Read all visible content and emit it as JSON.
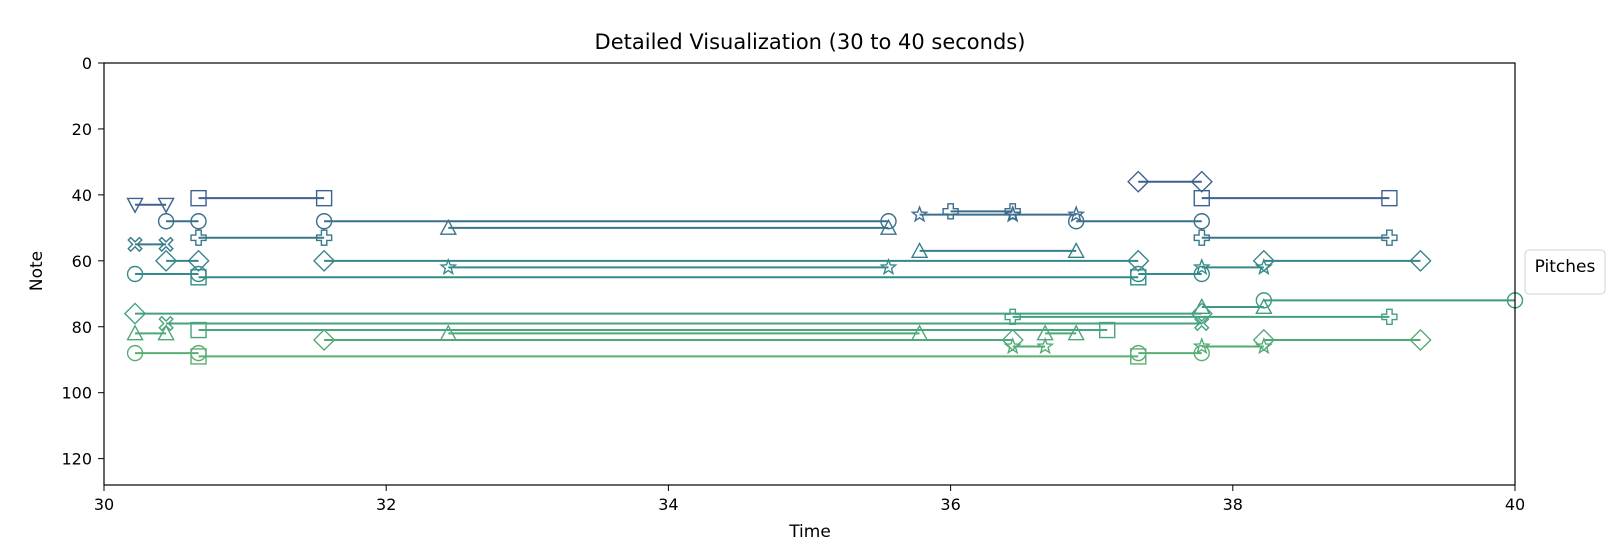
{
  "chart_data": {
    "type": "line",
    "title": "Detailed Visualization (30 to 40 seconds)",
    "xlabel": "Time",
    "ylabel": "Note",
    "xlim": [
      30,
      40
    ],
    "ylim": [
      128,
      0
    ],
    "y_inverted": true,
    "xticks": [
      30,
      32,
      34,
      36,
      38,
      40
    ],
    "yticks": [
      0,
      20,
      40,
      60,
      80,
      100,
      120
    ],
    "grid": false,
    "legend": {
      "title": "Pitches",
      "placement": "center-right outside",
      "entries": []
    },
    "colormap": "viridis (darker for low note numbers, green for high)",
    "series": [
      {
        "note": 36,
        "marker": "D",
        "color": "#3f5f8f",
        "segments": [
          [
            37.33,
            37.78
          ]
        ]
      },
      {
        "note": 41,
        "marker": "s",
        "color": "#3e6190",
        "segments": [
          [
            30.67,
            31.56
          ],
          [
            37.78,
            39.11
          ]
        ]
      },
      {
        "note": 43,
        "marker": "v",
        "color": "#3f638f",
        "segments": [
          [
            30.22,
            30.44
          ]
        ]
      },
      {
        "note": 45,
        "marker": "P",
        "color": "#3d6b8e",
        "segments": [
          [
            36.0,
            36.44
          ]
        ]
      },
      {
        "note": 46,
        "marker": "*",
        "color": "#3d6e8e",
        "segments": [
          [
            35.78,
            36.44
          ],
          [
            36.44,
            36.89
          ]
        ]
      },
      {
        "note": 48,
        "marker": "o",
        "color": "#3a6f8c",
        "segments": [
          [
            30.44,
            30.67
          ],
          [
            31.56,
            35.56
          ],
          [
            36.89,
            37.78
          ]
        ]
      },
      {
        "note": 50,
        "marker": "^",
        "color": "#3a738c",
        "segments": [
          [
            32.44,
            35.56
          ]
        ]
      },
      {
        "note": 53,
        "marker": "P",
        "color": "#39778b",
        "segments": [
          [
            30.67,
            31.56
          ],
          [
            37.78,
            39.11
          ]
        ]
      },
      {
        "note": 55,
        "marker": "X",
        "color": "#387a8a",
        "segments": [
          [
            30.22,
            30.44
          ]
        ]
      },
      {
        "note": 57,
        "marker": "^",
        "color": "#37808a",
        "segments": [
          [
            35.78,
            36.89
          ]
        ]
      },
      {
        "note": 60,
        "marker": "D",
        "color": "#358589",
        "segments": [
          [
            30.44,
            30.67
          ],
          [
            31.56,
            37.33
          ],
          [
            38.22,
            39.33
          ]
        ]
      },
      {
        "note": 62,
        "marker": "*",
        "color": "#358a88",
        "segments": [
          [
            32.44,
            35.56
          ],
          [
            37.78,
            38.22
          ]
        ]
      },
      {
        "note": 64,
        "marker": "o",
        "color": "#348a88",
        "segments": [
          [
            30.22,
            30.67
          ],
          [
            37.33,
            37.78
          ]
        ]
      },
      {
        "note": 65,
        "marker": "s",
        "color": "#338d87",
        "segments": [
          [
            30.67,
            37.33
          ]
        ]
      },
      {
        "note": 72,
        "marker": "o",
        "color": "#3e9a82",
        "segments": [
          [
            38.22,
            40.0
          ]
        ]
      },
      {
        "note": 74,
        "marker": "^",
        "color": "#3e9a82",
        "segments": [
          [
            37.78,
            38.22
          ]
        ]
      },
      {
        "note": 76,
        "marker": "D",
        "color": "#43a07e",
        "segments": [
          [
            30.22,
            37.78
          ]
        ]
      },
      {
        "note": 77,
        "marker": "P",
        "color": "#44a07e",
        "segments": [
          [
            36.44,
            39.11
          ]
        ]
      },
      {
        "note": 79,
        "marker": "X",
        "color": "#47a27c",
        "segments": [
          [
            30.44,
            37.78
          ]
        ]
      },
      {
        "note": 81,
        "marker": "s",
        "color": "#4aa57a",
        "segments": [
          [
            30.67,
            37.11
          ]
        ]
      },
      {
        "note": 82,
        "marker": "^",
        "color": "#4ca779",
        "segments": [
          [
            30.22,
            30.44
          ],
          [
            32.44,
            35.78
          ],
          [
            36.67,
            36.89
          ]
        ]
      },
      {
        "note": 84,
        "marker": "D",
        "color": "#4fa977",
        "segments": [
          [
            31.56,
            36.44
          ],
          [
            38.22,
            39.33
          ]
        ]
      },
      {
        "note": 86,
        "marker": "*",
        "color": "#52ab75",
        "segments": [
          [
            36.44,
            36.67
          ],
          [
            37.78,
            38.22
          ]
        ]
      },
      {
        "note": 88,
        "marker": "o",
        "color": "#58ae72",
        "segments": [
          [
            30.22,
            30.67
          ],
          [
            37.33,
            37.78
          ]
        ]
      },
      {
        "note": 89,
        "marker": "s",
        "color": "#5ab071",
        "segments": [
          [
            30.67,
            37.33
          ]
        ]
      }
    ]
  }
}
